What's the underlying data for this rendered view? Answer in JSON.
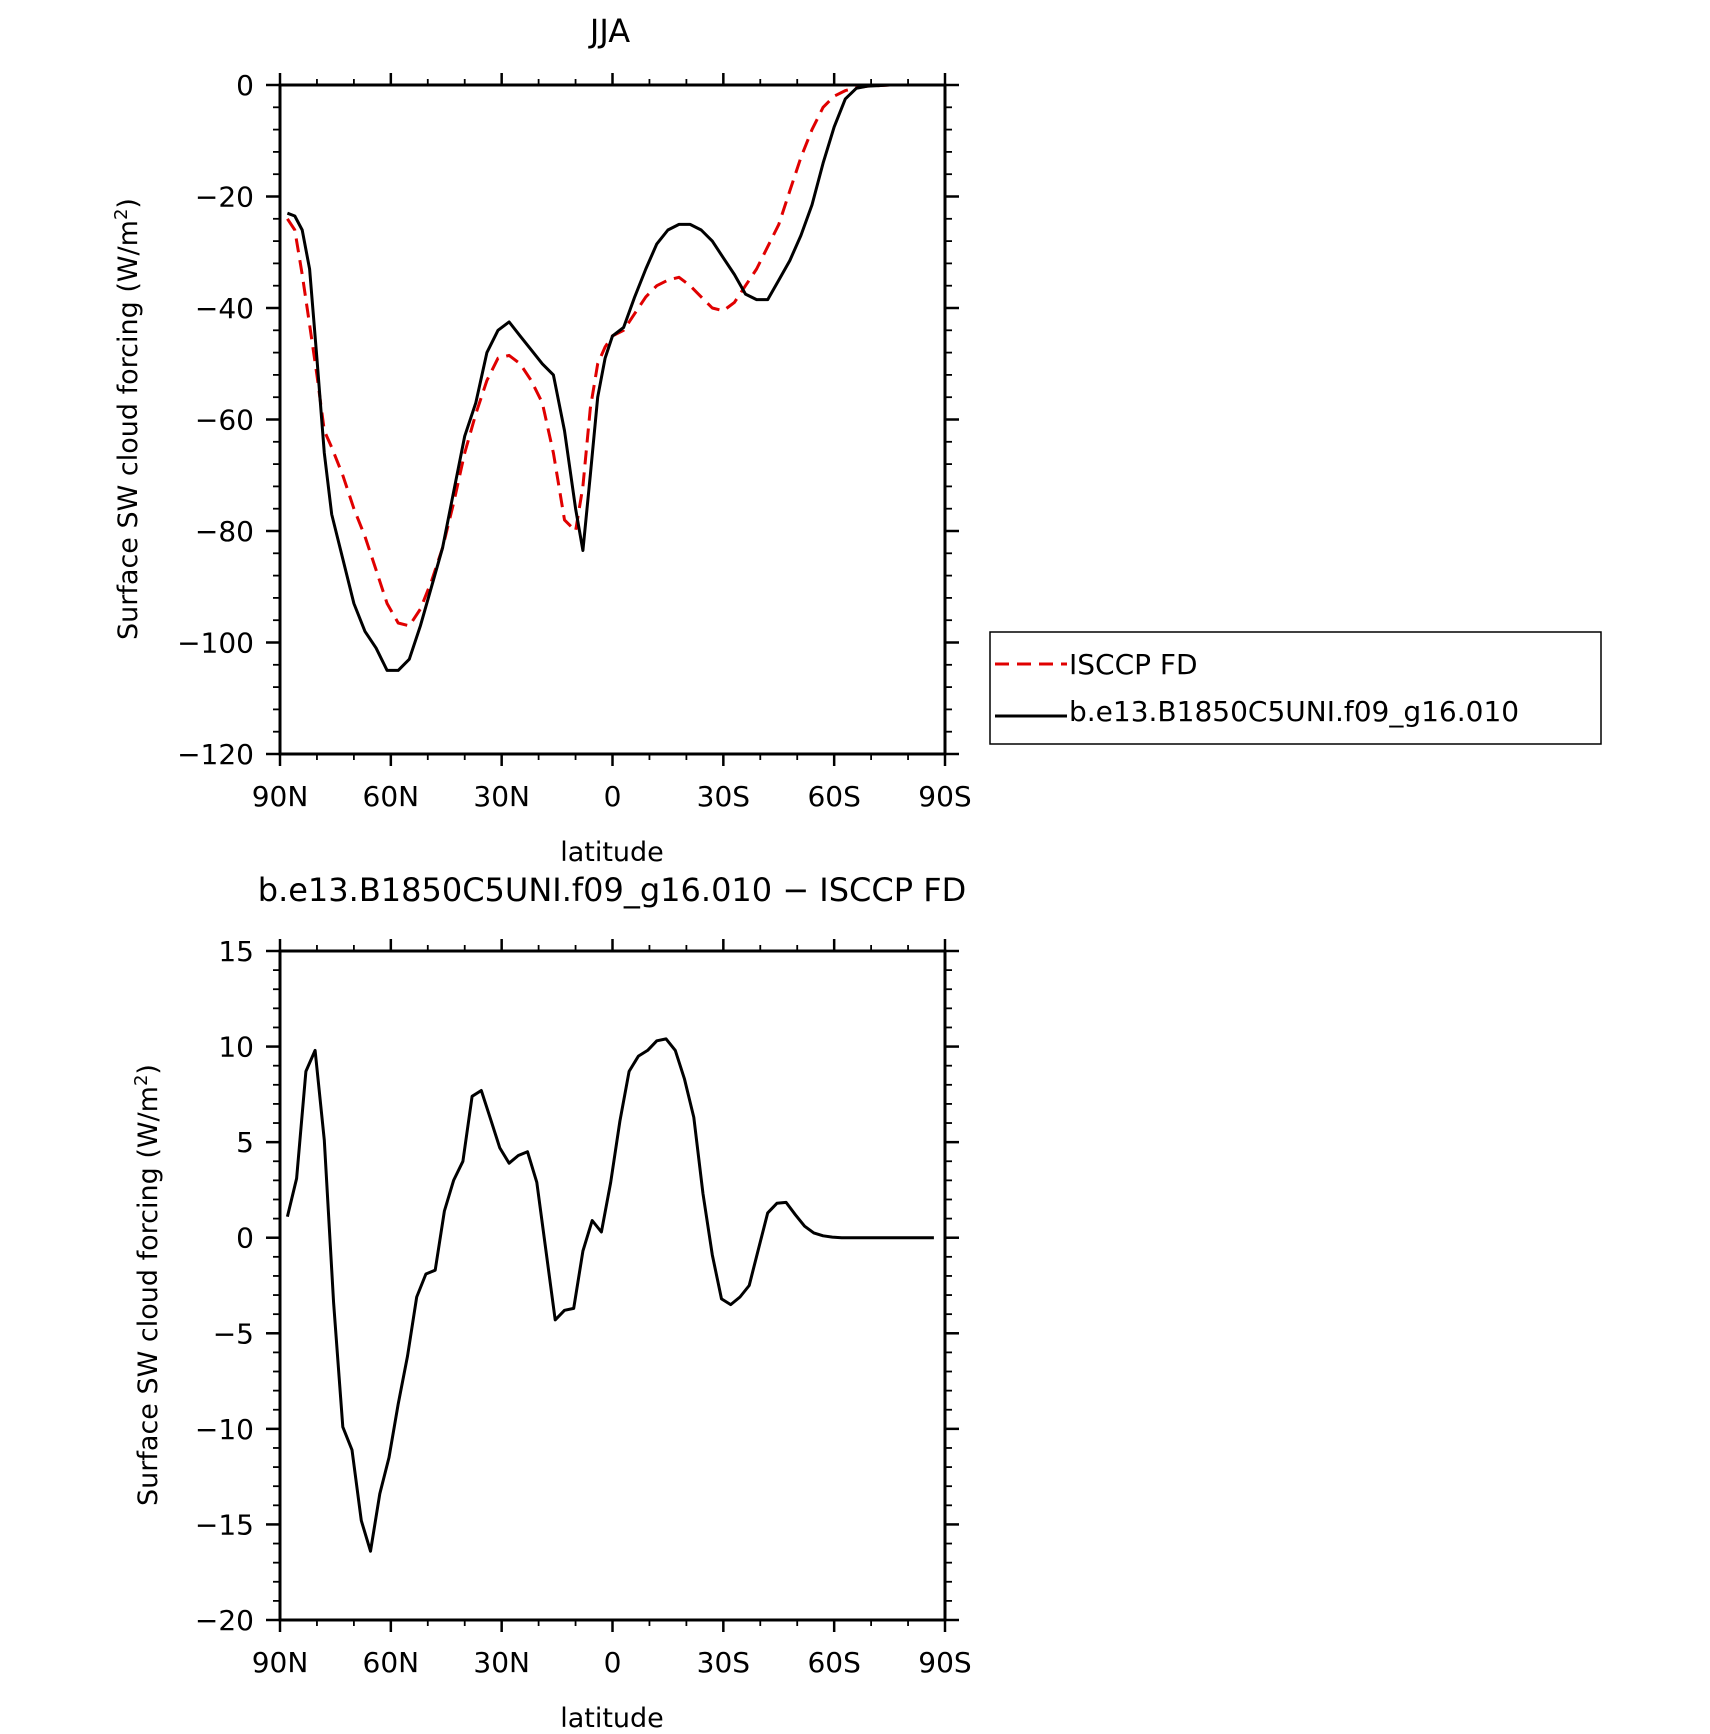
{
  "chart_data": [
    {
      "type": "line",
      "title": "JJA",
      "xlabel": "latitude",
      "ylabel": "Surface SW cloud forcing (W/m²)",
      "ylabel_main": "Surface SW cloud forcing (W/m",
      "ylabel_sup": "2",
      "ylabel_close": ")",
      "xlim": [
        90,
        -90
      ],
      "ylim": [
        -120,
        0
      ],
      "x_ticks": [
        90,
        60,
        30,
        0,
        -30,
        -60,
        -90
      ],
      "x_tick_labels": [
        "90N",
        "60N",
        "30N",
        "0",
        "30S",
        "60S",
        "90S"
      ],
      "y_ticks": [
        0,
        -20,
        -40,
        -60,
        -80,
        -100,
        -120
      ],
      "y_tick_labels": [
        "0",
        "−20",
        "−40",
        "−60",
        "−80",
        "−100",
        "−120"
      ],
      "legend": "right-outside",
      "series": [
        {
          "name": "ISCCP FD",
          "color": "#e00000",
          "dash": "dashed",
          "x": [
            88,
            86,
            84,
            82,
            80,
            78,
            76,
            73,
            70,
            67,
            64,
            61,
            58,
            55,
            52,
            49,
            46,
            43,
            40,
            37,
            34,
            31,
            28,
            25,
            22,
            19,
            16,
            13,
            10,
            8,
            6,
            4,
            2,
            0,
            -3,
            -6,
            -9,
            -12,
            -15,
            -18,
            -21,
            -24,
            -27,
            -30,
            -33,
            -36,
            -39,
            -42,
            -45,
            -48,
            -51,
            -54,
            -57,
            -60,
            -63,
            -66,
            -69,
            -72,
            -75,
            -78,
            -81,
            -84
          ],
          "y": [
            -24,
            -26,
            -34,
            -43,
            -52,
            -62,
            -65,
            -70,
            -76,
            -81,
            -87,
            -93,
            -96.5,
            -97,
            -94,
            -89,
            -83,
            -75,
            -66,
            -59,
            -53,
            -49,
            -48.5,
            -50,
            -53,
            -57,
            -66,
            -78,
            -80,
            -72,
            -58,
            -50,
            -47,
            -45,
            -44,
            -41,
            -38,
            -36,
            -35,
            -34.5,
            -36,
            -38,
            -40,
            -40.5,
            -39,
            -36,
            -33,
            -29,
            -25,
            -19,
            -13,
            -8,
            -4,
            -2,
            -1,
            -0.5,
            -0.2,
            -0.1,
            0,
            0,
            0,
            0
          ]
        },
        {
          "name": "b.e13.B1850C5UNI.f09_g16.010",
          "color": "#000000",
          "dash": "solid",
          "x": [
            88,
            86,
            84,
            82,
            80,
            78,
            76,
            73,
            70,
            67,
            64,
            61,
            58,
            55,
            52,
            49,
            46,
            43,
            40,
            37,
            34,
            31,
            28,
            25,
            22,
            19,
            16,
            13,
            10,
            8,
            6,
            4,
            2,
            0,
            -3,
            -6,
            -9,
            -12,
            -15,
            -18,
            -21,
            -24,
            -27,
            -30,
            -33,
            -36,
            -39,
            -42,
            -45,
            -48,
            -51,
            -54,
            -57,
            -60,
            -63,
            -66,
            -69,
            -72,
            -75,
            -78,
            -81,
            -84
          ],
          "y": [
            -23,
            -23.5,
            -26,
            -33,
            -49,
            -66,
            -77,
            -85,
            -93,
            -98,
            -101,
            -105,
            -105,
            -103,
            -97,
            -90,
            -83,
            -73,
            -63,
            -57,
            -48,
            -44,
            -42.5,
            -45,
            -47.5,
            -50,
            -52,
            -62,
            -76,
            -83.5,
            -70,
            -56,
            -49,
            -45,
            -43.5,
            -38,
            -33,
            -28.5,
            -26,
            -25,
            -25,
            -26,
            -28,
            -31,
            -34,
            -37.5,
            -38.5,
            -38.5,
            -35,
            -31.5,
            -27,
            -21.5,
            -14,
            -7.5,
            -2.5,
            -0.6,
            -0.2,
            -0.1,
            0,
            0,
            0,
            0
          ]
        }
      ]
    },
    {
      "type": "line",
      "title": "b.e13.B1850C5UNI.f09_g16.010 − ISCCP FD",
      "xlabel": "latitude",
      "ylabel": "Surface SW cloud forcing (W/m²)",
      "ylabel_main": "Surface SW cloud forcing (W/m",
      "ylabel_sup": "2",
      "ylabel_close": ")",
      "xlim": [
        90,
        -90
      ],
      "ylim": [
        -20,
        15
      ],
      "x_ticks": [
        90,
        60,
        30,
        0,
        -30,
        -60,
        -90
      ],
      "x_tick_labels": [
        "90N",
        "60N",
        "30N",
        "0",
        "30S",
        "60S",
        "90S"
      ],
      "y_ticks": [
        15,
        10,
        5,
        0,
        -5,
        -10,
        -15,
        -20
      ],
      "y_tick_labels": [
        "15",
        "10",
        "5",
        "0",
        "−5",
        "−10",
        "−15",
        "−20"
      ],
      "series": [
        {
          "color": "#000000",
          "dash": "solid",
          "x": [
            88,
            85.5,
            83,
            80.5,
            78,
            75.5,
            73,
            70.5,
            68,
            65.5,
            63,
            60.5,
            58,
            55.5,
            53,
            50.5,
            48,
            45.5,
            43,
            40.5,
            38,
            35.5,
            33,
            30.5,
            28,
            25.5,
            23,
            20.5,
            18,
            15.5,
            13,
            10.5,
            8,
            5.5,
            3,
            0.5,
            -2,
            -4.5,
            -7,
            -9.5,
            -12,
            -14.5,
            -17,
            -19.5,
            -22,
            -24.5,
            -27,
            -29.5,
            -32,
            -34.5,
            -37,
            -39.5,
            -42,
            -44.5,
            -47,
            -49.5,
            -52,
            -54.5,
            -57,
            -59.5,
            -62,
            -64.5,
            -67,
            -69.5,
            -72,
            -74.5,
            -77,
            -79.5,
            -82,
            -84.5,
            -87
          ],
          "y": [
            1.1,
            3.1,
            8.7,
            9.8,
            5.1,
            -3.4,
            -9.9,
            -11.1,
            -14.8,
            -16.4,
            -13.4,
            -11.5,
            -8.7,
            -6.2,
            -3.1,
            -1.9,
            -1.7,
            1.4,
            3.0,
            4.0,
            7.4,
            7.7,
            6.2,
            4.7,
            3.9,
            4.3,
            4.5,
            2.9,
            -0.7,
            -4.3,
            -3.8,
            -3.7,
            -0.7,
            0.9,
            0.3,
            2.9,
            6.1,
            8.7,
            9.5,
            9.8,
            10.3,
            10.4,
            9.8,
            8.3,
            6.3,
            2.3,
            -0.9,
            -3.2,
            -3.5,
            -3.1,
            -2.5,
            -0.6,
            1.3,
            1.8,
            1.85,
            1.2,
            0.6,
            0.25,
            0.1,
            0.03,
            0,
            0,
            0,
            0,
            0,
            0,
            0,
            0,
            0,
            0,
            0
          ]
        }
      ]
    }
  ]
}
